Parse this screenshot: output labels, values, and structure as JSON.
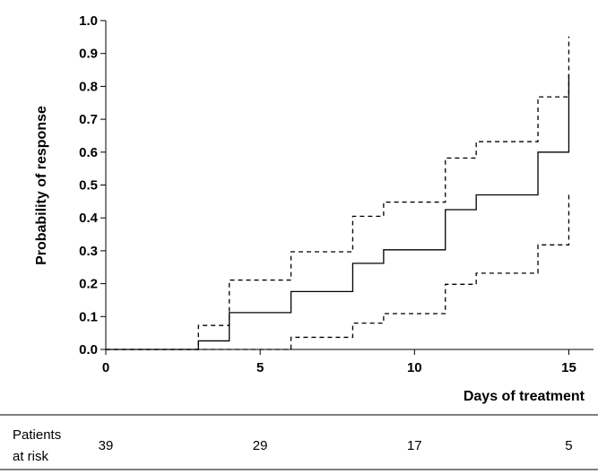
{
  "chart_data": {
    "type": "line",
    "title": "",
    "xlabel": "Days of treatment",
    "ylabel": "Probability of response",
    "xlim": [
      0,
      15.8
    ],
    "ylim": [
      0,
      1.0
    ],
    "x_ticks": [
      0,
      5,
      10,
      15
    ],
    "y_ticks": [
      0.0,
      0.1,
      0.2,
      0.3,
      0.4,
      0.5,
      0.6,
      0.7,
      0.8,
      0.9,
      1.0
    ],
    "grid": false,
    "legend": "none",
    "series": [
      {
        "style": "solid",
        "step": true,
        "x": [
          0,
          3,
          4,
          6,
          8,
          9,
          11,
          12,
          14,
          15
        ],
        "y": [
          0.0,
          0.026,
          0.112,
          0.176,
          0.262,
          0.303,
          0.425,
          0.47,
          0.6,
          0.835
        ]
      },
      {
        "style": "dashed",
        "step": true,
        "x": [
          0,
          3,
          4,
          6,
          8,
          9,
          11,
          12,
          14,
          15
        ],
        "y": [
          0.0,
          0.073,
          0.211,
          0.297,
          0.405,
          0.448,
          0.582,
          0.632,
          0.768,
          0.952
        ]
      },
      {
        "style": "dashed",
        "step": true,
        "x": [
          0,
          6,
          8,
          9,
          11,
          12,
          14,
          15
        ],
        "y": [
          0.0,
          0.037,
          0.08,
          0.109,
          0.198,
          0.232,
          0.318,
          0.47
        ]
      }
    ],
    "risk_table": {
      "label_line1": "Patients",
      "label_line2": "at risk",
      "x": [
        0,
        5,
        10,
        15
      ],
      "values": [
        "39",
        "29",
        "17",
        "5"
      ]
    }
  }
}
